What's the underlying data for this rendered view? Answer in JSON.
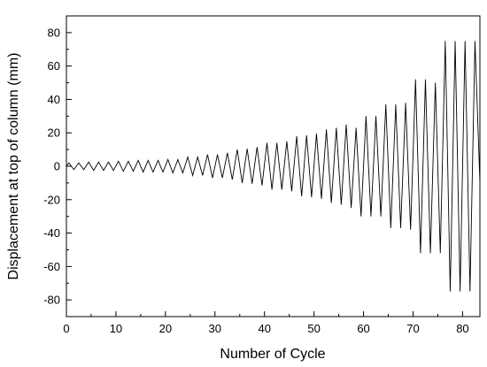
{
  "chart_data": {
    "type": "line",
    "title": "",
    "xlabel": "Number of Cycle",
    "ylabel": "Displacement at top of column (mm)",
    "xlim": [
      0,
      83.5
    ],
    "ylim": [
      -90,
      90
    ],
    "xticks": [
      0,
      10,
      20,
      30,
      40,
      50,
      60,
      70,
      80
    ],
    "yticks": [
      -80,
      -60,
      -40,
      -20,
      0,
      20,
      40,
      60,
      80
    ],
    "grid": false,
    "legend": "none",
    "line_color": "#000000",
    "series": [
      {
        "x": [
          0,
          0.5,
          1.5,
          2.5,
          3.5,
          4.5,
          5.5,
          6.5,
          7.5,
          8.5,
          9.5,
          10.5,
          11.5,
          12.5,
          13.5,
          14.5,
          15.5,
          16.5,
          17.5,
          18.5,
          19.5,
          20.5,
          21.5,
          22.5,
          23.5,
          24.5,
          25.5,
          26.5,
          27.5,
          28.5,
          29.5,
          30.5,
          31.5,
          32.5,
          33.5,
          34.5,
          35.5,
          36.5,
          37.5,
          38.5,
          39.5,
          40.5,
          41.5,
          42.5,
          43.5,
          44.5,
          45.5,
          46.5,
          47.5,
          48.5,
          49.5,
          50.5,
          51.5,
          52.5,
          53.5,
          54.5,
          55.5,
          56.5,
          57.5,
          58.5,
          59.5,
          60.5,
          61.5,
          62.5,
          63.5,
          64.5,
          65.5,
          66.5,
          67.5,
          68.5,
          69.5,
          70.5,
          71.5,
          72.5,
          73.5,
          74.5,
          75.5,
          76.5,
          77.5,
          78.5,
          79.5,
          80.5,
          81.5,
          82.5,
          83.5
        ],
        "y": [
          0,
          2,
          -2,
          2,
          -2,
          2.5,
          -2.5,
          2.5,
          -2.5,
          2.5,
          -2.5,
          3,
          -3,
          3,
          -3,
          3.5,
          -3.5,
          3.5,
          -3.5,
          3.5,
          -3.5,
          4,
          -4,
          4,
          -4,
          5.5,
          -5.5,
          5.5,
          -5.5,
          7,
          -7,
          7,
          -7,
          8,
          -8,
          10,
          -10,
          10.5,
          -10.5,
          11.5,
          -11.5,
          14,
          -14,
          14,
          -14,
          15,
          -15,
          18,
          -18,
          18.5,
          -18.5,
          19.5,
          -19.5,
          22,
          -22,
          23,
          -23,
          25,
          -25,
          23,
          -30,
          30,
          -30,
          30,
          -30,
          37,
          -37,
          37,
          -37,
          38,
          -38,
          52,
          -52,
          52,
          -52,
          50,
          -52,
          75,
          -75,
          75,
          -75,
          75,
          -75,
          75,
          -10
        ]
      }
    ]
  }
}
